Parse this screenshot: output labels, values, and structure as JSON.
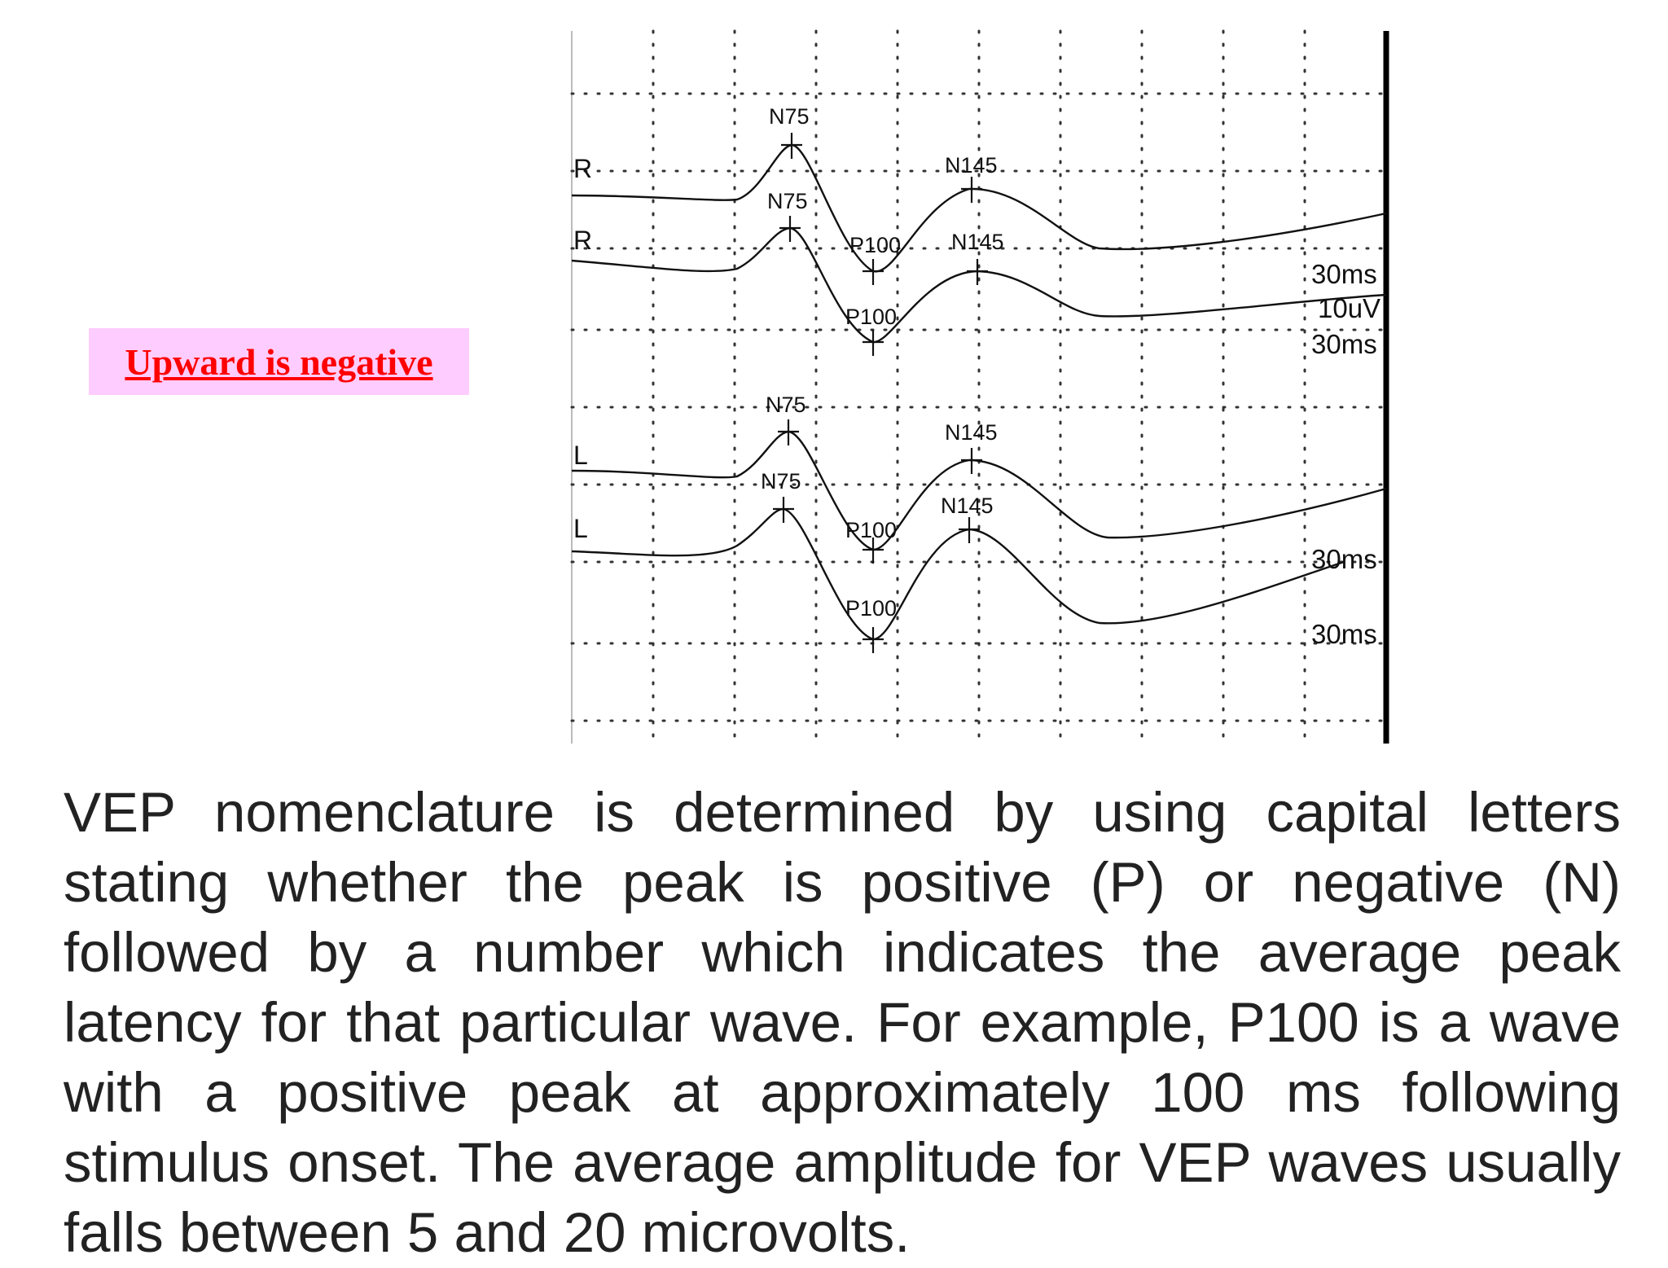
{
  "note": {
    "text": "Upward is negative",
    "color": "#ff0000",
    "background": "#ffccff"
  },
  "paragraph": "VEP nomenclature is determined by using capital letters stating whether the peak is positive (P) or negative (N) followed by a number which indicates the average peak latency for that particular wave. For example, P100 is a wave with a positive peak at approximately 100 ms following stimulus onset. The average amplitude for VEP waves usually falls between 5 and 20 microvolts.",
  "waveform_labels": {
    "row_labels": [
      "R",
      "R",
      "L",
      "L"
    ],
    "peaks": {
      "trace_1": [
        "N75",
        "P100",
        "N145"
      ],
      "trace_2": [
        "N75",
        "P100",
        "N145"
      ],
      "trace_3": [
        "N75",
        "P100",
        "N145"
      ],
      "trace_4": [
        "N75",
        "P100",
        "N145"
      ]
    },
    "scale": [
      "30ms",
      "10uV",
      "30ms",
      "30ms",
      "30ms"
    ]
  }
}
